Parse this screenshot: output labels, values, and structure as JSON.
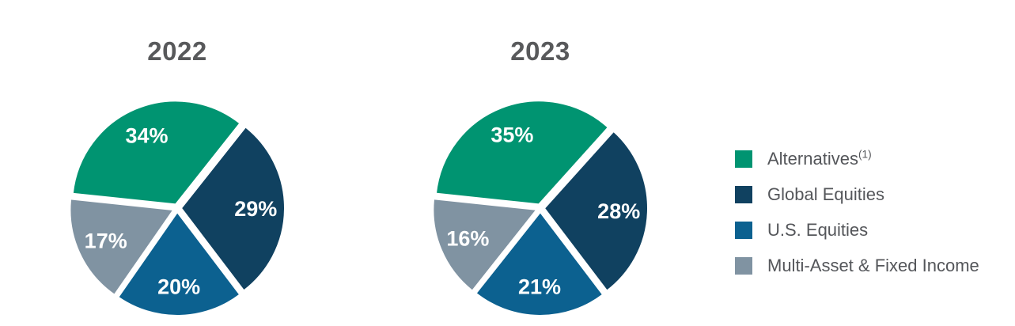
{
  "figure": {
    "background": "#FFFFFF"
  },
  "chart_data": [
    {
      "type": "pie",
      "title": "2022",
      "labels": [
        "Alternatives(1)",
        "Global Equities",
        "U.S. Equities",
        "Multi-Asset & Fixed Income"
      ],
      "values": [
        34,
        29,
        20,
        17
      ],
      "slice_labels": [
        "34%",
        "29%",
        "20%",
        "17%"
      ],
      "colors": [
        "#009471",
        "#104160",
        "#0C6190",
        "#8093A2"
      ],
      "unit": "percent",
      "start_angle_deg": 276,
      "direction": "clockwise",
      "exploded": true,
      "legend_position": "right"
    },
    {
      "type": "pie",
      "title": "2023",
      "labels": [
        "Alternatives(1)",
        "Global Equities",
        "U.S. Equities",
        "Multi-Asset & Fixed Income"
      ],
      "values": [
        35,
        28,
        21,
        16
      ],
      "slice_labels": [
        "35%",
        "28%",
        "21%",
        "16%"
      ],
      "colors": [
        "#009471",
        "#104160",
        "#0C6190",
        "#8093A2"
      ],
      "unit": "percent",
      "start_angle_deg": 276,
      "direction": "clockwise",
      "exploded": true,
      "legend_position": "right"
    }
  ],
  "legend": {
    "items": [
      {
        "label": "Alternatives",
        "sup": "(1)",
        "color": "#009471"
      },
      {
        "label": "Global Equities",
        "sup": "",
        "color": "#104160"
      },
      {
        "label": "U.S. Equities",
        "sup": "",
        "color": "#0C6190"
      },
      {
        "label": "Multi-Asset & Fixed Income",
        "sup": "",
        "color": "#8093A2"
      }
    ]
  },
  "colors": {
    "title_text": "#58595B",
    "legend_text": "#54565A",
    "slice_label_text": "#FFFFFF",
    "background": "#FFFFFF"
  }
}
